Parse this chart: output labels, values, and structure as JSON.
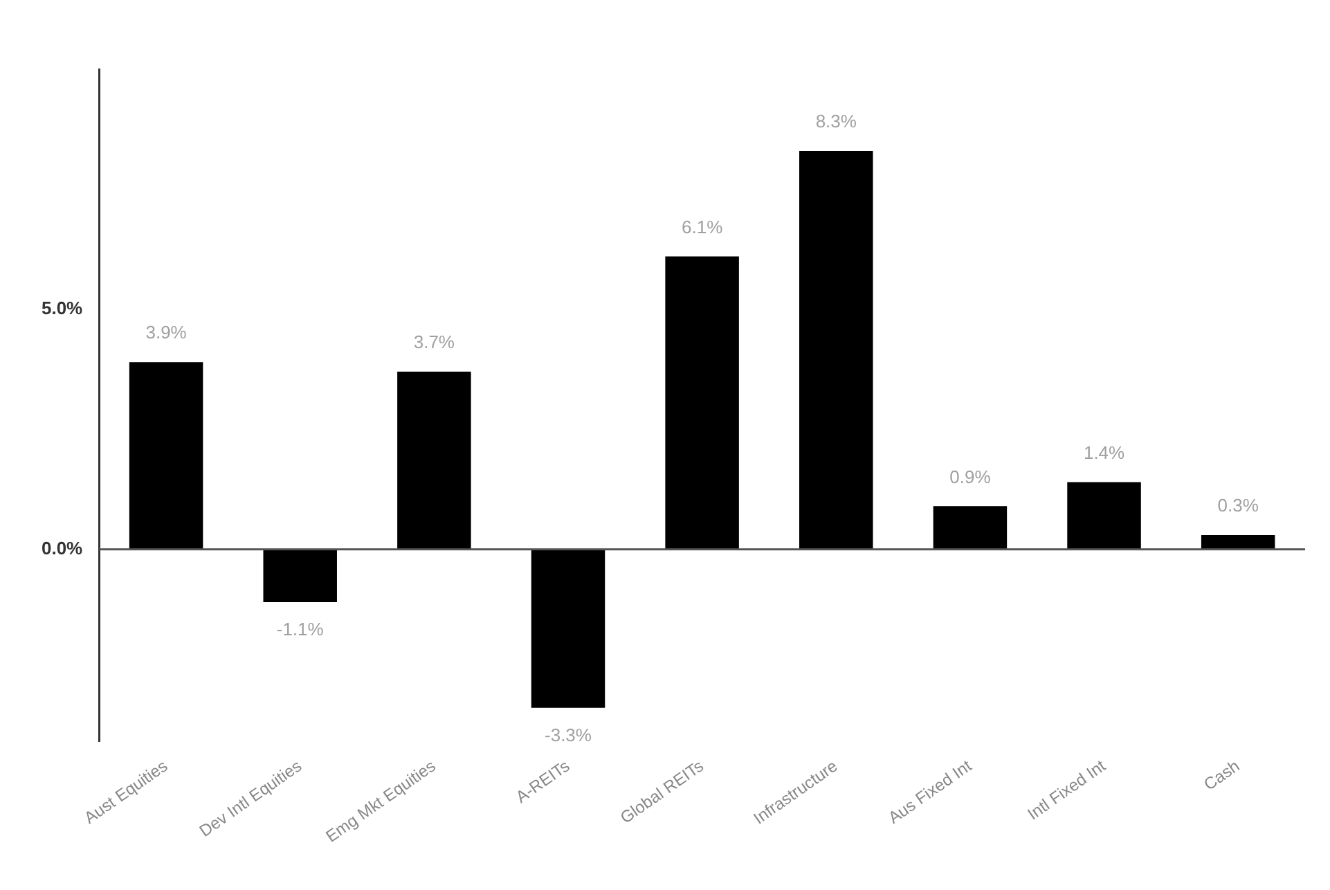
{
  "chart_data": {
    "type": "bar",
    "categories": [
      "Aust Equities",
      "Dev Intl Equities",
      "Emg Mkt Equities",
      "A-REITs",
      "Global REITs",
      "Infrastructure",
      "Aus Fixed Int",
      "Intl Fixed Int",
      "Cash"
    ],
    "values": [
      3.9,
      -1.1,
      3.7,
      -3.3,
      6.1,
      8.3,
      0.9,
      1.4,
      0.3
    ],
    "value_labels": [
      "3.9%",
      "-1.1%",
      "3.7%",
      "-3.3%",
      "6.1%",
      "8.3%",
      "0.9%",
      "1.4%",
      "0.3%"
    ],
    "color": "#000000",
    "ylim": [
      -4,
      10
    ],
    "yticks": [
      {
        "value": 0,
        "label": "0.0%"
      },
      {
        "value": 5,
        "label": "5.0%"
      }
    ],
    "ref_lines": [
      {
        "axis": "y",
        "value": 0,
        "color": "#555555"
      }
    ],
    "grid": false,
    "legend": false
  }
}
